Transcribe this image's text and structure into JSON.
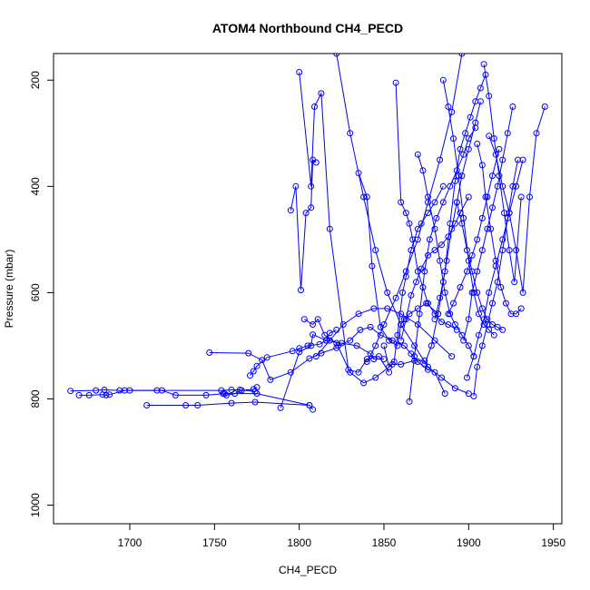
{
  "chart_data": {
    "type": "scatter",
    "title": "ATOM4 Northbound CH4_PECD",
    "xlabel": "CH4_PECD",
    "ylabel": "Pressure (mbar)",
    "xlim": [
      1655,
      1955
    ],
    "ylim": [
      1035,
      150
    ],
    "y_axis_inverted": true,
    "x_ticks": [
      1700,
      1750,
      1800,
      1850,
      1900,
      1950
    ],
    "y_ticks": [
      200,
      400,
      600,
      800,
      1000
    ],
    "grid": false,
    "legend": "none",
    "color": "#0000ff",
    "series": [
      {
        "x": [
          1665,
          1680,
          1685,
          1694,
          1700,
          1719,
          1727,
          1745,
          1756,
          1775,
          1806,
          1808
        ],
        "y": [
          785,
          784,
          783,
          784,
          784,
          784,
          793,
          793,
          790,
          790,
          812,
          820
        ]
      },
      {
        "x": [
          1670,
          1676,
          1684,
          1686,
          1688,
          1697,
          1716,
          1754,
          1760,
          1765,
          1774
        ],
        "y": [
          793,
          793,
          792,
          793,
          792,
          784,
          784,
          784,
          783,
          783,
          786
        ]
      },
      {
        "x": [
          1710,
          1733,
          1740,
          1760,
          1774,
          1806
        ],
        "y": [
          812,
          812,
          812,
          808,
          806,
          812
        ]
      },
      {
        "x": [
          1747,
          1770,
          1778,
          1783,
          1795,
          1806,
          1813,
          1822
        ],
        "y": [
          713,
          714,
          727,
          764,
          750,
          724,
          714,
          704
        ]
      },
      {
        "x": [
          1755,
          1757,
          1762,
          1766,
          1773,
          1775
        ],
        "y": [
          790,
          793,
          790,
          784,
          782,
          778
        ]
      },
      {
        "x": [
          1771,
          1773,
          1775,
          1781,
          1796,
          1800,
          1805,
          1812,
          1816,
          1818,
          1822
        ],
        "y": [
          756,
          748,
          738,
          722,
          710,
          705,
          700,
          697,
          690,
          676,
          670
        ]
      },
      {
        "x": [
          1789,
          1800,
          1807,
          1808,
          1816,
          1825,
          1834,
          1842,
          1844,
          1850
        ],
        "y": [
          817,
          712,
          700,
          679,
          690,
          695,
          700,
          715,
          725,
          725
        ]
      },
      {
        "x": [
          1795,
          1798,
          1801,
          1804,
          1807,
          1808,
          1810
        ],
        "y": [
          445,
          400,
          595,
          450,
          440,
          350,
          355
        ]
      },
      {
        "x": [
          1800,
          1807,
          1809,
          1813,
          1818,
          1829,
          1835,
          1840,
          1847,
          1853
        ],
        "y": [
          185,
          400,
          250,
          225,
          480,
          745,
          750,
          725,
          720,
          750
        ]
      },
      {
        "x": [
          1803,
          1808,
          1811,
          1815,
          1822,
          1830,
          1838,
          1845,
          1855,
          1860,
          1868,
          1874
        ],
        "y": [
          650,
          660,
          650,
          680,
          695,
          750,
          770,
          760,
          735,
          735,
          728,
          728
        ]
      },
      {
        "x": [
          1823,
          1830,
          1836,
          1842,
          1848,
          1855,
          1862,
          1866,
          1870,
          1876,
          1880,
          1886
        ],
        "y": [
          700,
          690,
          670,
          665,
          680,
          690,
          700,
          715,
          730,
          745,
          750,
          790
        ]
      },
      {
        "x": [
          1835,
          1840,
          1843,
          1848,
          1853,
          1858,
          1860,
          1862,
          1865,
          1870,
          1875,
          1882
        ],
        "y": [
          375,
          420,
          550,
          665,
          690,
          700,
          660,
          650,
          640,
          630,
          620,
          640
        ]
      },
      {
        "x": [
          1850,
          1853,
          1856,
          1858,
          1861,
          1863,
          1866,
          1870,
          1872,
          1876,
          1880,
          1885
        ],
        "y": [
          700,
          740,
          730,
          680,
          600,
          570,
          520,
          480,
          470,
          450,
          430,
          400
        ]
      },
      {
        "x": [
          1857,
          1860,
          1863,
          1865,
          1867,
          1870,
          1873,
          1876,
          1880,
          1884,
          1888,
          1893
        ],
        "y": [
          205,
          430,
          450,
          470,
          500,
          560,
          590,
          620,
          640,
          655,
          660,
          670
        ]
      },
      {
        "x": [
          1860,
          1863,
          1866,
          1869,
          1872,
          1876,
          1880,
          1884,
          1888,
          1892,
          1895,
          1900
        ],
        "y": [
          690,
          650,
          605,
          580,
          555,
          530,
          520,
          510,
          495,
          470,
          450,
          420
        ]
      },
      {
        "x": [
          1865,
          1868,
          1871,
          1874,
          1877,
          1881,
          1885,
          1889,
          1893,
          1897,
          1900,
          1904
        ],
        "y": [
          805,
          720,
          640,
          560,
          500,
          460,
          430,
          400,
          370,
          340,
          310,
          290
        ]
      },
      {
        "x": [
          1870,
          1873,
          1876,
          1880,
          1883,
          1886,
          1889,
          1892,
          1896,
          1900,
          1903
        ],
        "y": [
          340,
          370,
          420,
          480,
          540,
          600,
          640,
          660,
          680,
          700,
          720
        ]
      },
      {
        "x": [
          1874,
          1878,
          1882,
          1885,
          1887,
          1890,
          1893,
          1896,
          1900,
          1904,
          1907
        ],
        "y": [
          735,
          700,
          640,
          580,
          540,
          480,
          430,
          380,
          330,
          280,
          240
        ]
      },
      {
        "x": [
          1880,
          1883,
          1886,
          1889,
          1892,
          1895,
          1898,
          1901,
          1904,
          1907,
          1910
        ],
        "y": [
          650,
          610,
          560,
          470,
          390,
          330,
          300,
          270,
          240,
          215,
          190
        ]
      },
      {
        "x": [
          1885,
          1888,
          1891,
          1894,
          1897,
          1900,
          1903,
          1906,
          1909,
          1912,
          1915
        ],
        "y": [
          200,
          250,
          310,
          380,
          460,
          540,
          600,
          640,
          660,
          670,
          680
        ]
      },
      {
        "x": [
          1888,
          1891,
          1895,
          1899,
          1902,
          1905,
          1908,
          1911,
          1914,
          1918
        ],
        "y": [
          640,
          620,
          590,
          560,
          530,
          500,
          460,
          420,
          380,
          330
        ]
      },
      {
        "x": [
          1893,
          1896,
          1899,
          1902,
          1905,
          1908,
          1911,
          1914,
          1917,
          1920
        ],
        "y": [
          430,
          470,
          520,
          560,
          600,
          630,
          650,
          660,
          665,
          670
        ]
      },
      {
        "x": [
          1897,
          1900,
          1902,
          1905,
          1908,
          1911,
          1914,
          1917,
          1920,
          1923,
          1926
        ],
        "y": [
          690,
          650,
          600,
          560,
          520,
          480,
          440,
          400,
          350,
          300,
          250
        ]
      },
      {
        "x": [
          1899,
          1903,
          1906,
          1909,
          1912,
          1916,
          1920,
          1924,
          1928,
          1932
        ],
        "y": [
          760,
          720,
          680,
          650,
          600,
          550,
          500,
          450,
          400,
          350
        ]
      },
      {
        "x": [
          1903,
          1905,
          1908,
          1911,
          1914,
          1917,
          1920,
          1923,
          1926,
          1929
        ],
        "y": [
          795,
          740,
          700,
          660,
          620,
          580,
          520,
          460,
          400,
          350
        ]
      },
      {
        "x": [
          1905,
          1908,
          1910,
          1913,
          1916,
          1919,
          1922,
          1925,
          1928,
          1931
        ],
        "y": [
          320,
          360,
          420,
          480,
          540,
          590,
          620,
          640,
          640,
          630
        ]
      },
      {
        "x": [
          1909,
          1912,
          1915,
          1918,
          1921,
          1924,
          1927,
          1931
        ],
        "y": [
          170,
          230,
          310,
          380,
          450,
          520,
          580,
          420
        ]
      },
      {
        "x": [
          1912,
          1916,
          1920,
          1924,
          1928,
          1932,
          1936,
          1940,
          1945
        ],
        "y": [
          305,
          340,
          400,
          450,
          520,
          600,
          420,
          300,
          250
        ]
      },
      {
        "x": [
          1896,
          1890,
          1883,
          1876,
          1870,
          1863,
          1857,
          1850,
          1845,
          1840
        ],
        "y": [
          150,
          260,
          350,
          430,
          500,
          560,
          610,
          660,
          700,
          730
        ]
      },
      {
        "x": [
          1822,
          1830,
          1838,
          1845,
          1852,
          1860,
          1868,
          1876,
          1884,
          1892,
          1900
        ],
        "y": [
          150,
          300,
          420,
          520,
          600,
          660,
          700,
          740,
          760,
          780,
          790
        ]
      },
      {
        "x": [
          1810,
          1818,
          1826,
          1835,
          1844,
          1852,
          1860,
          1870,
          1880,
          1890
        ],
        "y": [
          720,
          690,
          660,
          640,
          630,
          630,
          640,
          660,
          690,
          720
        ]
      }
    ]
  }
}
